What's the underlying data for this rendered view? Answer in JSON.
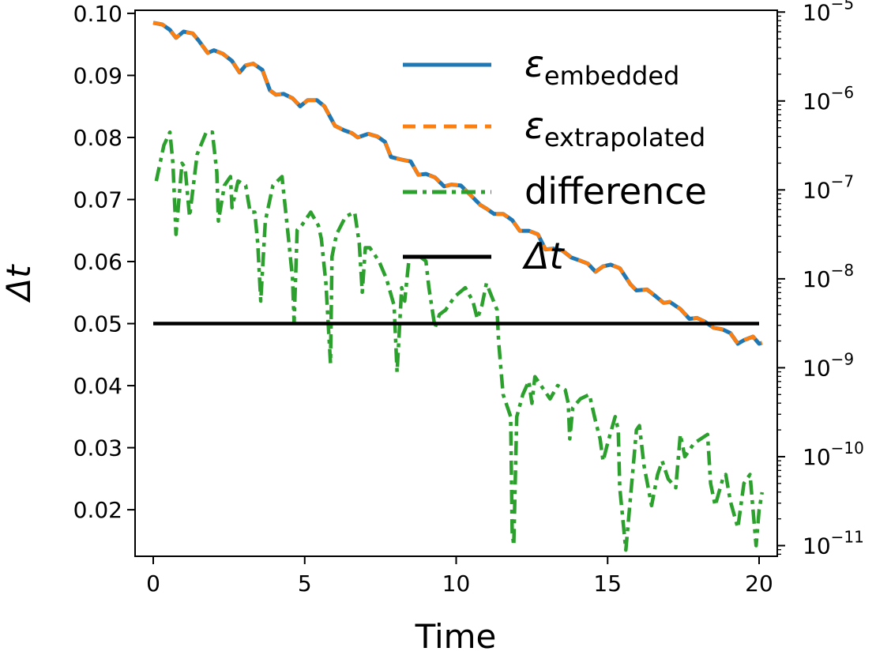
{
  "chart_data": {
    "type": "line",
    "xlabel": "Time",
    "ylabel": "Δt",
    "xlim": [
      -0.6,
      20.6
    ],
    "ylim": [
      0.0125,
      0.1005
    ],
    "xticks": [
      0,
      5,
      10,
      15,
      20
    ],
    "xtick_labels": [
      "0",
      "5",
      "10",
      "15",
      "20"
    ],
    "yticks": [
      0.02,
      0.03,
      0.04,
      0.05,
      0.06,
      0.07,
      0.08,
      0.09,
      0.1
    ],
    "ytick_labels": [
      "0.02",
      "0.03",
      "0.04",
      "0.05",
      "0.06",
      "0.07",
      "0.08",
      "0.09",
      "0.10"
    ],
    "y2_scale": "log",
    "y2lim_exp": [
      -11.12,
      -4.98
    ],
    "y2ticks_exp": [
      -11,
      -10,
      -9,
      -8,
      -7,
      -6,
      -5
    ],
    "y2tick_labels": [
      "10",
      "10",
      "10",
      "10",
      "10",
      "10",
      "10"
    ],
    "y2tick_exponents": [
      "−11",
      "−10",
      "−9",
      "−8",
      "−7",
      "−6",
      "−5"
    ],
    "grid": false,
    "legend_position": "top-right",
    "legend": [
      {
        "symbol": "ε",
        "subscript": "embedded",
        "text": "",
        "color": "#1f77b4",
        "style": "solid"
      },
      {
        "symbol": "ε",
        "subscript": "extrapolated",
        "text": "",
        "color": "#ff7f0e",
        "style": "dashed"
      },
      {
        "symbol": "",
        "subscript": "",
        "text": "difference",
        "color": "#2ca02c",
        "style": "dashdot"
      },
      {
        "symbol": "Δt",
        "subscript": "",
        "text": "",
        "color": "#000000",
        "style": "solid"
      }
    ],
    "series": [
      {
        "name": "embedded",
        "axis": "right-log",
        "color": "#1f77b4",
        "x": [
          0,
          0.3,
          0.55,
          0.75,
          1.0,
          1.3,
          1.5,
          1.8,
          2.0,
          2.3,
          2.6,
          2.85,
          3.05,
          3.3,
          3.6,
          3.85,
          4.05,
          4.3,
          4.6,
          4.85,
          5.1,
          5.4,
          5.65,
          6.0,
          6.3,
          6.55,
          6.75,
          7.1,
          7.4,
          7.65,
          7.85,
          8.2,
          8.5,
          8.75,
          9.0,
          9.3,
          9.6,
          9.85,
          10.15,
          10.45,
          10.8,
          11.0,
          11.25,
          11.55,
          11.85,
          12.1,
          12.4,
          12.7,
          12.95,
          13.2,
          13.5,
          13.8,
          14.05,
          14.35,
          14.6,
          14.85,
          15.1,
          15.4,
          15.75,
          15.95,
          16.3,
          16.6,
          16.85,
          17.05,
          17.4,
          17.7,
          17.95,
          18.2,
          18.5,
          18.8,
          19.05,
          19.3,
          19.5,
          19.8,
          20.0,
          20.1
        ],
        "y_exp": [
          -5.12,
          -5.14,
          -5.2,
          -5.29,
          -5.22,
          -5.24,
          -5.32,
          -5.46,
          -5.43,
          -5.47,
          -5.55,
          -5.68,
          -5.6,
          -5.58,
          -5.65,
          -5.88,
          -5.93,
          -5.92,
          -5.97,
          -6.06,
          -5.99,
          -5.99,
          -6.06,
          -6.28,
          -6.33,
          -6.36,
          -6.41,
          -6.37,
          -6.4,
          -6.46,
          -6.63,
          -6.66,
          -6.68,
          -6.83,
          -6.82,
          -6.86,
          -6.96,
          -6.94,
          -6.95,
          -7.05,
          -7.17,
          -7.21,
          -7.27,
          -7.27,
          -7.34,
          -7.46,
          -7.46,
          -7.5,
          -7.67,
          -7.66,
          -7.68,
          -7.76,
          -7.79,
          -7.83,
          -7.92,
          -7.86,
          -7.84,
          -7.88,
          -8.06,
          -8.13,
          -8.12,
          -8.2,
          -8.27,
          -8.26,
          -8.34,
          -8.45,
          -8.44,
          -8.48,
          -8.55,
          -8.57,
          -8.61,
          -8.73,
          -8.69,
          -8.65,
          -8.73,
          -8.72
        ]
      },
      {
        "name": "extrapolated",
        "axis": "right-log",
        "color": "#ff7f0e",
        "x": [
          0,
          0.3,
          0.55,
          0.75,
          1.0,
          1.3,
          1.5,
          1.8,
          2.0,
          2.3,
          2.6,
          2.85,
          3.05,
          3.3,
          3.6,
          3.85,
          4.05,
          4.3,
          4.6,
          4.85,
          5.1,
          5.4,
          5.65,
          6.0,
          6.3,
          6.55,
          6.75,
          7.1,
          7.4,
          7.65,
          7.85,
          8.2,
          8.5,
          8.75,
          9.0,
          9.3,
          9.6,
          9.85,
          10.15,
          10.45,
          10.8,
          11.0,
          11.25,
          11.55,
          11.85,
          12.1,
          12.4,
          12.7,
          12.95,
          13.2,
          13.5,
          13.8,
          14.05,
          14.35,
          14.6,
          14.85,
          15.1,
          15.4,
          15.75,
          15.95,
          16.3,
          16.6,
          16.85,
          17.05,
          17.4,
          17.7,
          17.95,
          18.2,
          18.5,
          18.8,
          19.05,
          19.3,
          19.5,
          19.8,
          20.0,
          20.1
        ],
        "y_exp": [
          -5.12,
          -5.14,
          -5.2,
          -5.29,
          -5.22,
          -5.24,
          -5.32,
          -5.46,
          -5.43,
          -5.47,
          -5.55,
          -5.68,
          -5.6,
          -5.58,
          -5.65,
          -5.88,
          -5.93,
          -5.92,
          -5.97,
          -6.06,
          -5.99,
          -5.99,
          -6.06,
          -6.28,
          -6.33,
          -6.36,
          -6.41,
          -6.37,
          -6.4,
          -6.46,
          -6.63,
          -6.66,
          -6.68,
          -6.83,
          -6.82,
          -6.86,
          -6.96,
          -6.94,
          -6.95,
          -7.05,
          -7.17,
          -7.21,
          -7.27,
          -7.27,
          -7.34,
          -7.46,
          -7.46,
          -7.5,
          -7.67,
          -7.66,
          -7.68,
          -7.76,
          -7.79,
          -7.83,
          -7.92,
          -7.86,
          -7.84,
          -7.88,
          -8.06,
          -8.13,
          -8.12,
          -8.2,
          -8.27,
          -8.26,
          -8.34,
          -8.45,
          -8.44,
          -8.48,
          -8.55,
          -8.57,
          -8.61,
          -8.73,
          -8.69,
          -8.65,
          -8.73,
          -8.72
        ]
      },
      {
        "name": "difference",
        "axis": "right-log",
        "color": "#2ca02c",
        "x": [
          0.1,
          0.35,
          0.55,
          0.65,
          0.75,
          0.95,
          1.05,
          1.2,
          1.45,
          1.75,
          1.95,
          2.1,
          2.15,
          2.35,
          2.55,
          2.6,
          2.8,
          3.05,
          3.2,
          3.35,
          3.45,
          3.55,
          3.7,
          3.95,
          4.25,
          4.45,
          4.6,
          4.65,
          4.75,
          4.9,
          5.2,
          5.45,
          5.55,
          5.7,
          5.85,
          5.9,
          6.05,
          6.35,
          6.65,
          6.8,
          6.9,
          7.0,
          7.15,
          7.45,
          7.7,
          7.95,
          8.05,
          8.2,
          8.3,
          8.45,
          8.8,
          9.0,
          9.1,
          9.3,
          9.45,
          9.65,
          9.95,
          10.3,
          10.55,
          10.7,
          10.85,
          11.0,
          11.35,
          11.4,
          11.55,
          11.8,
          11.85,
          11.9,
          12.0,
          12.2,
          12.4,
          12.5,
          12.6,
          12.8,
          13.1,
          13.35,
          13.6,
          13.7,
          13.75,
          13.85,
          14.1,
          14.4,
          14.6,
          14.75,
          14.85,
          15.0,
          15.25,
          15.35,
          15.4,
          15.6,
          15.95,
          16.05,
          16.2,
          16.45,
          16.65,
          16.8,
          17.0,
          17.25,
          17.4,
          17.55,
          17.85,
          18.3,
          18.4,
          18.55,
          18.8,
          18.9,
          19.05,
          19.3,
          19.5,
          19.7,
          19.9,
          20.0,
          20.1
        ],
        "y_exp": [
          -6.9,
          -6.5,
          -6.35,
          -6.7,
          -7.5,
          -6.7,
          -6.75,
          -7.3,
          -6.6,
          -6.35,
          -6.35,
          -6.8,
          -7.35,
          -6.95,
          -6.85,
          -7.2,
          -6.9,
          -6.95,
          -7.25,
          -7.25,
          -7.6,
          -8.25,
          -7.35,
          -6.95,
          -6.85,
          -7.5,
          -8.0,
          -8.5,
          -7.45,
          -7.4,
          -7.25,
          -7.4,
          -7.55,
          -8.05,
          -8.95,
          -7.75,
          -7.5,
          -7.3,
          -7.25,
          -7.6,
          -8.15,
          -7.65,
          -7.65,
          -7.8,
          -8.0,
          -8.3,
          -9.05,
          -8.1,
          -8.25,
          -7.75,
          -7.75,
          -7.8,
          -8.1,
          -8.55,
          -8.4,
          -8.35,
          -8.2,
          -8.1,
          -8.25,
          -8.45,
          -8.3,
          -8.05,
          -8.35,
          -8.7,
          -9.3,
          -9.55,
          -10.85,
          -11.0,
          -9.55,
          -9.3,
          -9.15,
          -9.4,
          -9.1,
          -9.2,
          -9.35,
          -9.2,
          -9.25,
          -9.4,
          -9.8,
          -9.45,
          -9.35,
          -9.3,
          -9.6,
          -9.8,
          -10.05,
          -9.85,
          -9.55,
          -9.7,
          -10.35,
          -11.05,
          -9.7,
          -9.65,
          -10.1,
          -10.55,
          -10.2,
          -10.05,
          -10.25,
          -10.35,
          -9.75,
          -10.0,
          -9.85,
          -9.75,
          -10.3,
          -10.55,
          -10.25,
          -10.2,
          -10.5,
          -10.8,
          -10.3,
          -10.2,
          -11.0,
          -10.6,
          -10.4
        ]
      },
      {
        "name": "Δt",
        "axis": "left",
        "color": "#000000",
        "x": [
          0,
          20
        ],
        "y": [
          0.05,
          0.05
        ]
      }
    ]
  }
}
